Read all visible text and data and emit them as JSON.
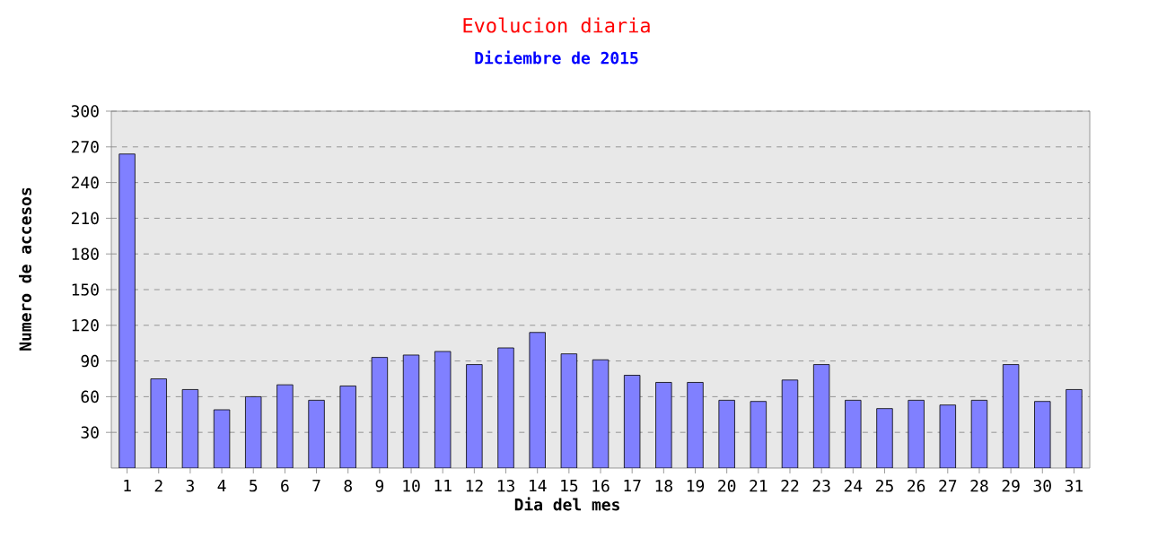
{
  "chart_data": {
    "type": "bar",
    "title": "Evolucion diaria",
    "subtitle": "Diciembre de 2015",
    "xlabel": "Dia del mes",
    "ylabel": "Numero de accesos",
    "categories": [
      "1",
      "2",
      "3",
      "4",
      "5",
      "6",
      "7",
      "8",
      "9",
      "10",
      "11",
      "12",
      "13",
      "14",
      "15",
      "16",
      "17",
      "18",
      "19",
      "20",
      "21",
      "22",
      "23",
      "24",
      "25",
      "26",
      "27",
      "28",
      "29",
      "30",
      "31"
    ],
    "values": [
      264,
      75,
      66,
      49,
      60,
      70,
      57,
      69,
      93,
      95,
      98,
      87,
      101,
      114,
      96,
      91,
      78,
      72,
      72,
      57,
      56,
      74,
      87,
      57,
      50,
      57,
      53,
      57,
      87,
      56,
      66
    ],
    "color": "#8080ff",
    "ylim": [
      0,
      300
    ],
    "yticks": [
      30,
      60,
      90,
      120,
      150,
      180,
      210,
      240,
      270,
      300
    ],
    "grid": "y"
  }
}
